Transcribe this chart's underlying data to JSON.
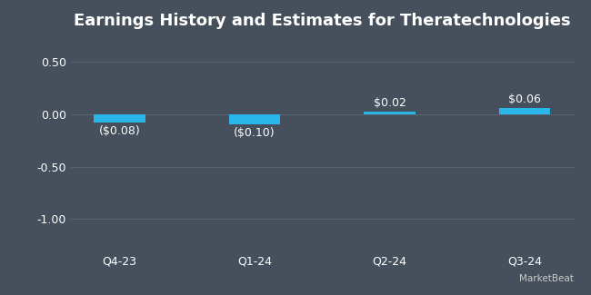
{
  "title": "Earnings History and Estimates for Theratechnologies",
  "categories": [
    "Q4-23",
    "Q1-24",
    "Q2-24",
    "Q3-24"
  ],
  "values": [
    -0.08,
    -0.1,
    0.02,
    0.06
  ],
  "bar_labels": [
    "($0.08)",
    "($0.10)",
    "$0.02",
    "$0.06"
  ],
  "bar_color": "#29b6e8",
  "background_color": "#464f5c",
  "text_color": "#ffffff",
  "grid_color": "#5a6470",
  "ylim": [
    -1.3,
    0.72
  ],
  "yticks": [
    -1.0,
    -0.5,
    0.0,
    0.5
  ],
  "ytick_labels": [
    "-1.00",
    "-0.50",
    "0.00",
    "0.50"
  ],
  "title_fontsize": 13,
  "tick_fontsize": 9,
  "label_fontsize": 9,
  "bar_width": 0.38
}
